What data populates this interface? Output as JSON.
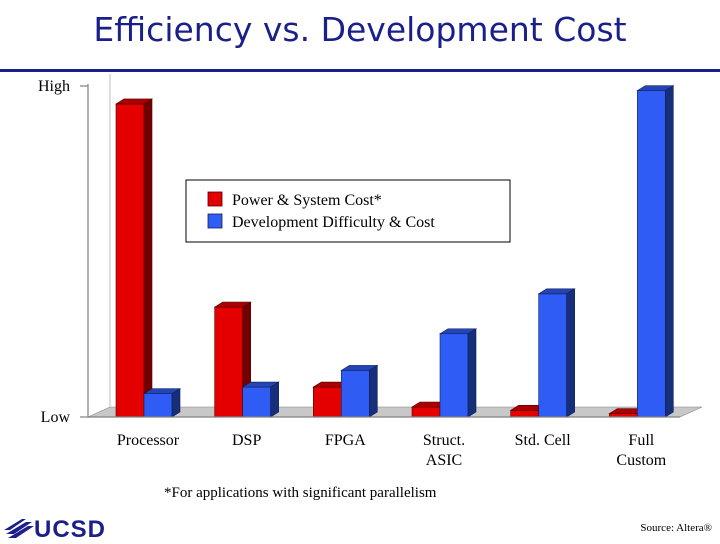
{
  "slide": {
    "title": "Efficiency vs. Development Cost",
    "footnote": "*For applications with significant parallelism",
    "source": "Source: Altera®",
    "logo_text": "UCSD"
  },
  "colors": {
    "title": "#1b1f8a",
    "power": "#e50000",
    "development": "#2e5cf5"
  },
  "chart_data": {
    "type": "bar",
    "categories": [
      "Processor",
      "DSP",
      "FPGA",
      "Struct. ASIC",
      "Std. Cell",
      "Full Custom"
    ],
    "category_lines": [
      [
        "Processor"
      ],
      [
        "DSP"
      ],
      [
        "FPGA"
      ],
      [
        "Struct.",
        "ASIC"
      ],
      [
        "Std. Cell"
      ],
      [
        "Full",
        "Custom"
      ]
    ],
    "y_tick_labels": [
      "Low",
      "High"
    ],
    "ylim": [
      0,
      100
    ],
    "legend_position": "center",
    "series": [
      {
        "name": "Power & System Cost*",
        "color": "#e50000",
        "values": [
          94,
          33,
          9,
          3,
          2,
          1
        ]
      },
      {
        "name": "Development Difficulty & Cost",
        "color": "#2e5cf5",
        "values": [
          7,
          9,
          14,
          25,
          37,
          98
        ]
      }
    ]
  }
}
